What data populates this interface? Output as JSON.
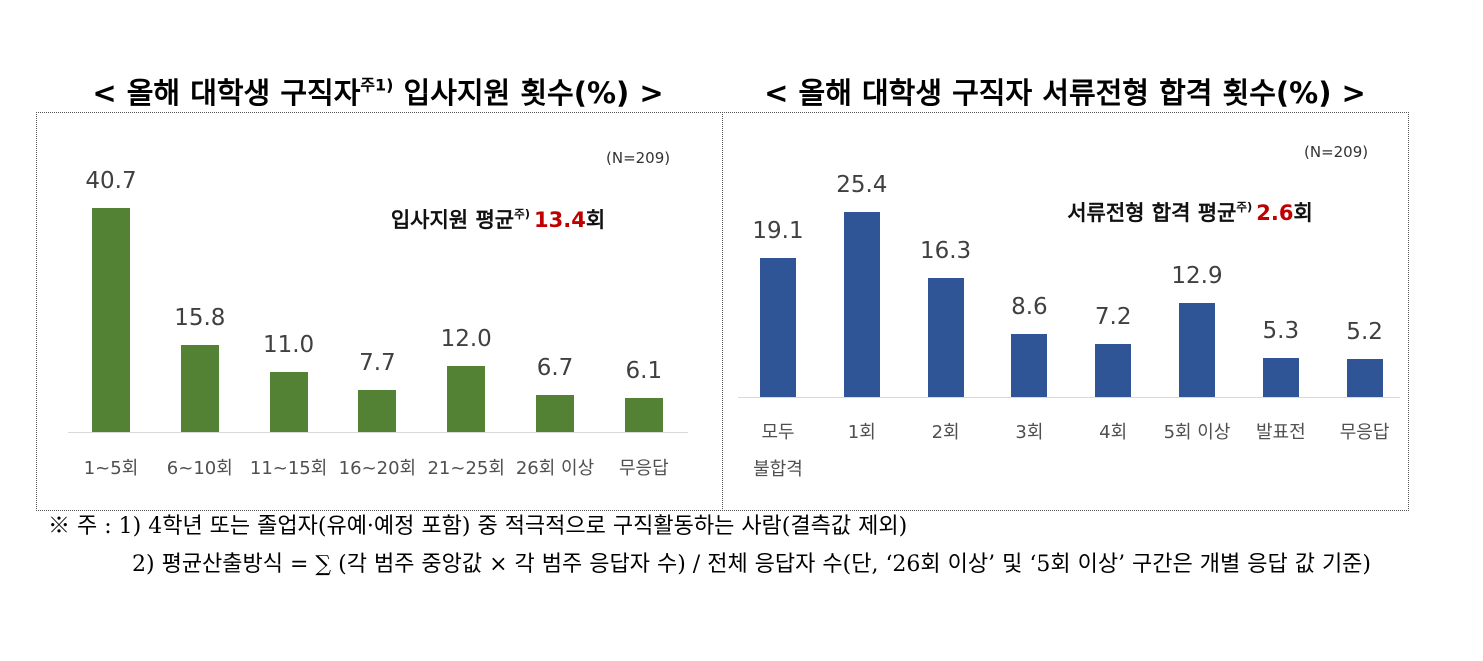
{
  "chart_data": [
    {
      "type": "bar",
      "title_parts": [
        "< 올해 대학생 구직자",
        "주1)",
        " 입사지원 횟수(%) >"
      ],
      "n_label": "(N=209)",
      "annotation": {
        "text": "입사지원 평균",
        "sup": "주)",
        "value": 13.4,
        "unit": "회"
      },
      "categories": [
        "1~5회",
        "6~10회",
        "11~15회",
        "16~20회",
        "21~25회",
        "26회 이상",
        "무응답"
      ],
      "values": [
        40.7,
        15.8,
        11.0,
        7.7,
        12.0,
        6.7,
        6.1
      ],
      "value_labels": [
        "40.7",
        "15.8",
        "11.0",
        "7.7",
        "12.0",
        "6.7",
        "6.1"
      ],
      "color": "#548235"
    },
    {
      "type": "bar",
      "title_parts": [
        "< 올해 대학생 구직자 서류전형 합격 횟수(%) >"
      ],
      "n_label": "(N=209)",
      "annotation": {
        "text": "서류전형 합격 평균",
        "sup": "주)",
        "value": 2.6,
        "unit": "회"
      },
      "categories": [
        "모두\n불합격",
        "1회",
        "2회",
        "3회",
        "4회",
        "5회 이상",
        "발표전",
        "무응답"
      ],
      "values": [
        19.1,
        25.4,
        16.3,
        8.6,
        7.2,
        12.9,
        5.3,
        5.2
      ],
      "color": "#2f5597"
    }
  ],
  "notes": [
    "※ 주 : 1) 4학년 또는 졸업자(유예·예정 포함) 중 적극적으로 구직활동하는 사람(결측값 제외)",
    "2) 평균산출방식 = ∑ (각 범주 중앙값 × 각 범주 응답자 수) / 전체 응답자 수(단, ‘26회 이상’ 및 ‘5회 이상’ 구간은 개별 응답 값 기준)"
  ]
}
